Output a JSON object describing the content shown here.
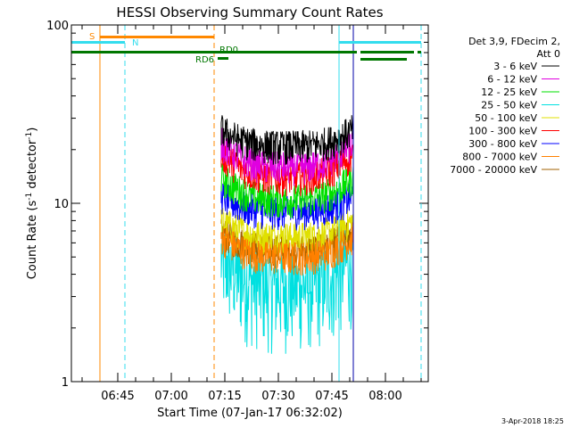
{
  "footer_timestamp": "3-Apr-2018 18:25",
  "chart_data": {
    "type": "line",
    "title": "HESSI Observing Summary Count Rates",
    "xlabel": "Start Time (07-Jan-17 06:32:02)",
    "ylabel_main": "Count Rate (s",
    "ylabel_sup": "-1",
    "ylabel_end": " detector",
    "ylabel_close": ")",
    "yscale": "log",
    "ylim": [
      1,
      100
    ],
    "y_ticks": [
      {
        "value": 1,
        "label": "1"
      },
      {
        "value": 10,
        "label": "10"
      },
      {
        "value": 100,
        "label": "100"
      }
    ],
    "xlim": [
      "06:32",
      "08:12"
    ],
    "x_ticks": [
      "06:45",
      "07:00",
      "07:15",
      "07:30",
      "07:45",
      "08:00"
    ],
    "legend": {
      "header": [
        "Det 3,9, FDecim 2,",
        "Att 0"
      ],
      "placement": "right"
    },
    "colors": {
      "3-6": "#000000",
      "6-12": "#e000e0",
      "12-25": "#00e000",
      "25-50": "#00e0e0",
      "50-100": "#e0e000",
      "100-300": "#ff0000",
      "300-800": "#0000ff",
      "800-7000": "#ff8000",
      "7000-20000": "#a06000",
      "flag_cyan": "#33ddee",
      "flag_orange": "#ff8800",
      "flag_green": "#007700"
    },
    "series": [
      {
        "name": "3 - 6 keV",
        "color": "#000000",
        "start": "07:14",
        "end": "07:51",
        "edge": 26,
        "mid": 21
      },
      {
        "name": "6 - 12 keV",
        "color": "#e000e0",
        "start": "07:14",
        "end": "07:51",
        "edge": 22,
        "mid": 16
      },
      {
        "name": "12 - 25 keV",
        "color": "#00e000",
        "start": "07:14",
        "end": "07:51",
        "edge": 14,
        "mid": 10.5
      },
      {
        "name": "25 - 50 keV",
        "color": "#00e0e0",
        "start": "07:14",
        "end": "07:51",
        "edge": 5,
        "mid": 3.5
      },
      {
        "name": "50 - 100 keV",
        "color": "#e0e000",
        "start": "07:14",
        "end": "07:51",
        "edge": 8,
        "mid": 6.5
      },
      {
        "name": "100 - 300 keV",
        "color": "#ff0000",
        "start": "07:14",
        "end": "07:51",
        "edge": 19,
        "mid": 14
      },
      {
        "name": "300 - 800 keV",
        "color": "#0000ff",
        "start": "07:14",
        "end": "07:51",
        "edge": 11,
        "mid": 9
      },
      {
        "name": "800 - 7000 keV",
        "color": "#ff8000",
        "start": "07:14",
        "end": "07:51",
        "edge": 6.5,
        "mid": 5
      },
      {
        "name": "7000 - 20000 keV",
        "color": "#a06000",
        "start": "07:14",
        "end": "07:51",
        "edge": 7,
        "mid": 5.5
      }
    ],
    "flags": {
      "S": {
        "label": "S",
        "color": "#ff8800",
        "start": "06:40",
        "end": "07:12"
      },
      "N": [
        {
          "label": "N",
          "color": "#33ddee",
          "start": "06:32",
          "end": "06:47"
        },
        {
          "label": "",
          "color": "#33ddee",
          "start": "07:47",
          "end": "08:10"
        }
      ],
      "RD6": {
        "label": "RD6",
        "color": "#007700",
        "start": "07:13",
        "end": "07:16"
      },
      "RD0": {
        "label": "RD0",
        "color": "#007700"
      },
      "green_main": [
        {
          "start": "06:32",
          "end": "07:52"
        },
        {
          "start": "07:53",
          "end": "08:08"
        },
        {
          "start": "08:09",
          "end": "08:10"
        }
      ]
    },
    "vlines": [
      {
        "time": "06:32",
        "color": "#33ddee",
        "dash": false
      },
      {
        "time": "06:40",
        "color": "#ff8800",
        "dash": false
      },
      {
        "time": "06:47",
        "color": "#33ddee",
        "dash": true
      },
      {
        "time": "07:12",
        "color": "#ff8800",
        "dash": true
      },
      {
        "time": "07:47",
        "color": "#33ddee",
        "dash": false
      },
      {
        "time": "07:51",
        "color": "#0000aa",
        "dash": false
      },
      {
        "time": "08:10",
        "color": "#33ddee",
        "dash": true
      }
    ]
  }
}
